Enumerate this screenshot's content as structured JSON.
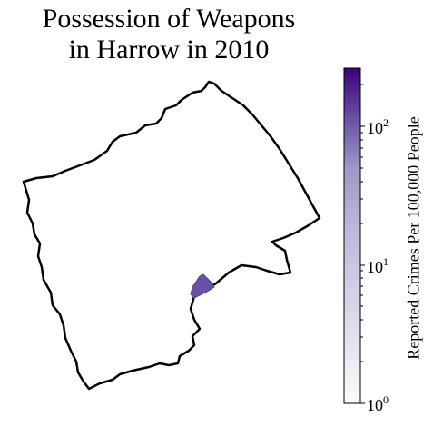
{
  "title": {
    "line1": "Possession of Weapons",
    "line2": "in Harrow in 2010"
  },
  "map": {
    "borough": "Harrow",
    "boundary_color": "#000000",
    "highlight_color": "#6a51a3"
  },
  "colorbar": {
    "label": "Reported Crimes Per 100,000 People",
    "scale": "log",
    "range": [
      1,
      250
    ],
    "ticks": [
      {
        "base": "10",
        "exp": "0"
      },
      {
        "base": "10",
        "exp": "1"
      },
      {
        "base": "10",
        "exp": "2"
      }
    ],
    "colormap": "Purples",
    "color_low": "#fcfbfd",
    "color_high": "#3f007d"
  }
}
